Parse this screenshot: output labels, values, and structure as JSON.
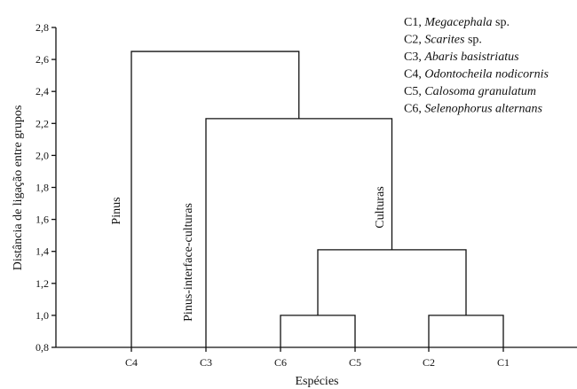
{
  "chart_data": {
    "type": "dendrogram",
    "ylabel": "Distância de ligação entre grupos",
    "xlabel": "Espécies",
    "ylim": [
      0.8,
      2.8
    ],
    "y_ticks": [
      "0,8",
      "1,0",
      "1,2",
      "1,4",
      "1,6",
      "1,8",
      "2,0",
      "2,2",
      "2,4",
      "2,6",
      "2,8"
    ],
    "leaves": [
      "C4",
      "C3",
      "C6",
      "C5",
      "C2",
      "C1"
    ],
    "merges": [
      {
        "left": "C6",
        "right": "C5",
        "height": 1.0
      },
      {
        "left": "C2",
        "right": "C1",
        "height": 1.0
      },
      {
        "left": "C6+C5",
        "right": "C2+C1",
        "height": 1.41
      },
      {
        "left": "C3",
        "right": "C6+C5+C2+C1",
        "height": 2.23
      },
      {
        "left": "C4",
        "right": "C3+C6+C5+C2+C1",
        "height": 2.65
      }
    ],
    "group_labels": [
      {
        "text": "Pinus"
      },
      {
        "text": "Pinus-interface-culturas"
      },
      {
        "text": "Culturas"
      }
    ],
    "legend": [
      {
        "code": "C1,",
        "name": "Megacephala",
        "suffix": "sp."
      },
      {
        "code": "C2,",
        "name": "Scarites",
        "suffix": "sp."
      },
      {
        "code": "C3,",
        "name": "Abaris basistriatus",
        "suffix": ""
      },
      {
        "code": "C4,",
        "name": "Odontocheila nodicornis",
        "suffix": ""
      },
      {
        "code": "C5,",
        "name": "Calosoma granulatum",
        "suffix": ""
      },
      {
        "code": "C6,",
        "name": "Selenophorus alternans",
        "suffix": ""
      }
    ]
  }
}
